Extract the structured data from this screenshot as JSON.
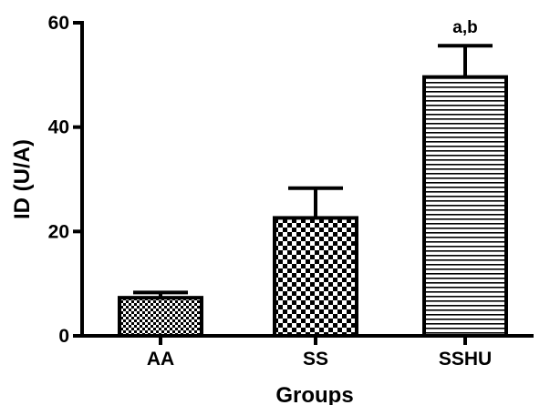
{
  "chart_data": {
    "type": "bar",
    "xlabel": "Groups",
    "ylabel": "ID (U/A)",
    "ylim": [
      0,
      60
    ],
    "yticks": [
      0,
      20,
      40,
      60
    ],
    "categories": [
      "AA",
      "SS",
      "SSHU"
    ],
    "values": [
      7.3,
      22.6,
      49.6
    ],
    "error_plus": [
      1.0,
      5.7,
      6.0
    ],
    "patterns": [
      "checker-fine",
      "checker-coarse",
      "horizontal-lines"
    ],
    "annotations": [
      {
        "category": "SSHU",
        "text": "a,b"
      }
    ],
    "grid": false,
    "legend": "none"
  }
}
